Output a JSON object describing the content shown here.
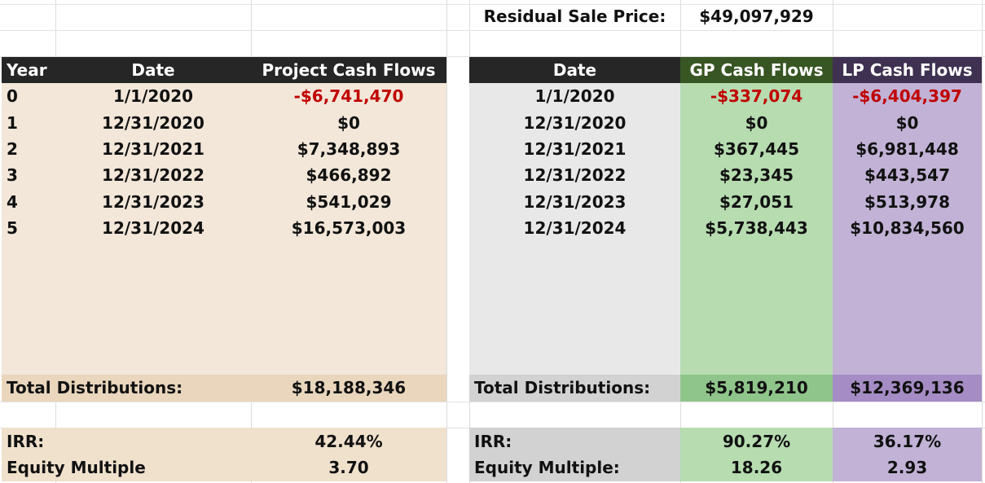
{
  "residual": {
    "label": "Residual Sale Price:",
    "value": "$49,097,929"
  },
  "project_table": {
    "headers": [
      "Year",
      "Date",
      "Project Cash Flows"
    ],
    "rows": [
      {
        "year": "0",
        "date": "1/1/2020",
        "cf": "-$6,741,470"
      },
      {
        "year": "1",
        "date": "12/31/2020",
        "cf": "$0"
      },
      {
        "year": "2",
        "date": "12/31/2021",
        "cf": "$7,348,893"
      },
      {
        "year": "3",
        "date": "12/31/2022",
        "cf": "$466,892"
      },
      {
        "year": "4",
        "date": "12/31/2023",
        "cf": "$541,029"
      },
      {
        "year": "5",
        "date": "12/31/2024",
        "cf": "$16,573,003"
      }
    ],
    "total_label": "Total Distributions:",
    "total_value": "$18,188,346",
    "irr_label": "IRR:",
    "irr_value": "42.44%",
    "em_label": "Equity Multiple",
    "em_value": "3.70"
  },
  "split_table": {
    "headers": [
      "Date",
      "GP Cash Flows",
      "LP Cash Flows"
    ],
    "rows": [
      {
        "date": "1/1/2020",
        "gp": "-$337,074",
        "lp": "-$6,404,397"
      },
      {
        "date": "12/31/2020",
        "gp": "$0",
        "lp": "$0"
      },
      {
        "date": "12/31/2021",
        "gp": "$367,445",
        "lp": "$6,981,448"
      },
      {
        "date": "12/31/2022",
        "gp": "$23,345",
        "lp": "$443,547"
      },
      {
        "date": "12/31/2023",
        "gp": "$27,051",
        "lp": "$513,978"
      },
      {
        "date": "12/31/2024",
        "gp": "$5,738,443",
        "lp": "$10,834,560"
      }
    ],
    "total_label": "Total Distributions:",
    "total_gp": "$5,819,210",
    "total_lp": "$12,369,136",
    "irr_label": "IRR:",
    "irr_gp": "90.27%",
    "irr_lp": "36.17%",
    "em_label": "Equity Multiple:",
    "em_gp": "18.26",
    "em_lp": "2.93"
  },
  "colors": {
    "header_dark": "#262626",
    "header_gp": "#375623",
    "header_lp": "#3f3151",
    "project_bg": "#f2e7d9",
    "project_total_bg": "#e9d6bd",
    "split_date_bg": "#e8e8e8",
    "split_total_bg": "#d2d2d2",
    "gp_bg": "#b6dcb0",
    "gp_total_bg": "#8fc58a",
    "lp_bg": "#c1b2d6",
    "lp_total_bg": "#a58cc4",
    "negative": "#c00000"
  }
}
